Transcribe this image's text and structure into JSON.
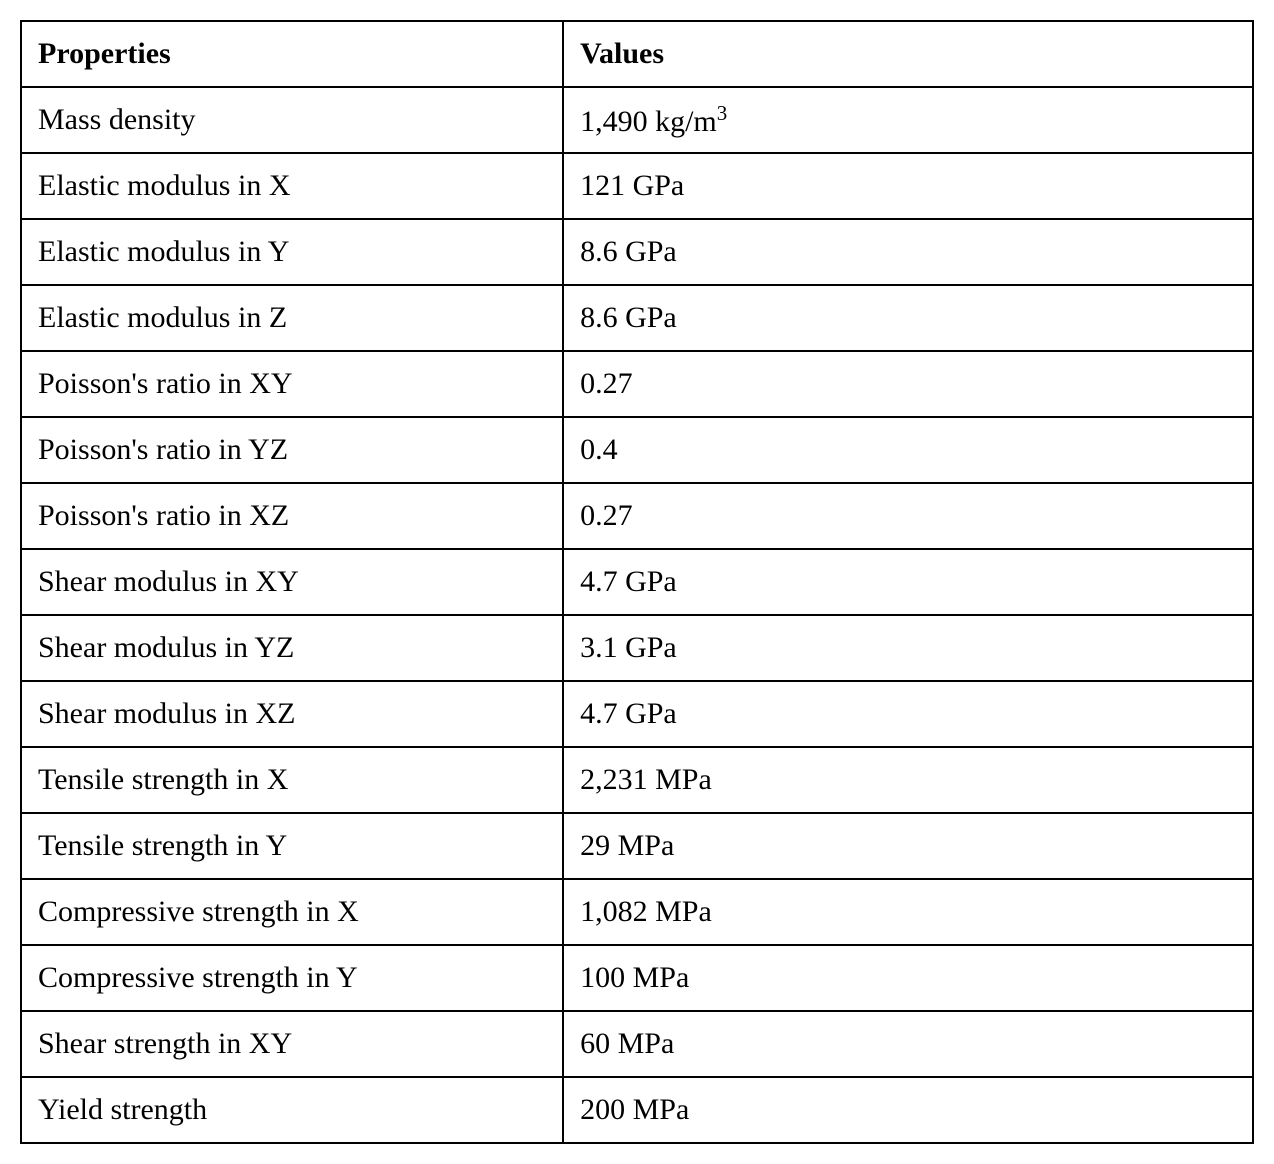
{
  "table": {
    "columns": [
      "Properties",
      "Values"
    ],
    "rows": [
      {
        "property": "Mass density",
        "value": "1,490 kg/m³"
      },
      {
        "property": "Elastic modulus in X",
        "value": "121 GPa"
      },
      {
        "property": "Elastic modulus in Y",
        "value": "8.6 GPa"
      },
      {
        "property": "Elastic modulus in Z",
        "value": "8.6 GPa"
      },
      {
        "property": "Poisson's ratio in XY",
        "value": "0.27"
      },
      {
        "property": "Poisson's ratio in YZ",
        "value": "0.4"
      },
      {
        "property": "Poisson's ratio in XZ",
        "value": "0.27"
      },
      {
        "property": "Shear modulus in XY",
        "value": "4.7 GPa"
      },
      {
        "property": "Shear modulus in YZ",
        "value": "3.1 GPa"
      },
      {
        "property": "Shear modulus in XZ",
        "value": "4.7 GPa"
      },
      {
        "property": "Tensile strength in X",
        "value": "2,231 MPa"
      },
      {
        "property": "Tensile strength in Y",
        "value": "29 MPa"
      },
      {
        "property": "Compressive strength in X",
        "value": "1,082 MPa"
      },
      {
        "property": "Compressive strength in Y",
        "value": "100 MPa"
      },
      {
        "property": "Shear strength in XY",
        "value": "60 MPa"
      },
      {
        "property": "Yield strength",
        "value": "200 MPa"
      }
    ],
    "border_color": "#000000",
    "background_color": "#ffffff",
    "text_color": "#000000",
    "font_family": "Georgia, 'Times New Roman', serif",
    "font_size": 30,
    "header_font_weight": "bold",
    "col0_width_pct": 44,
    "col1_width_pct": 56
  }
}
